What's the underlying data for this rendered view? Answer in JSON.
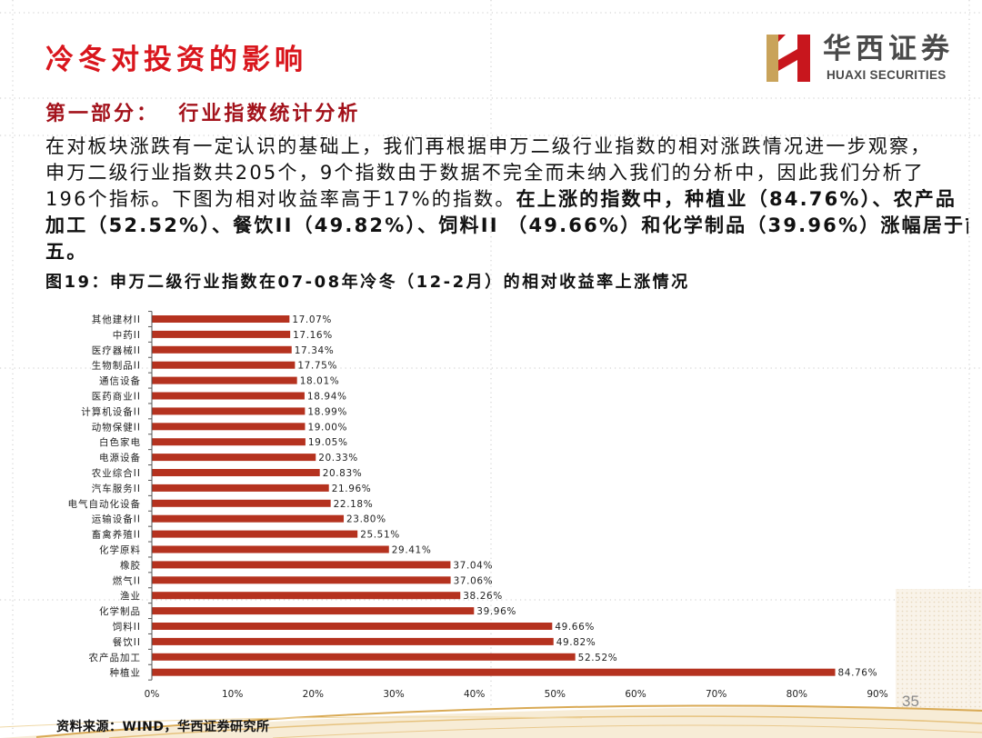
{
  "slide": {
    "title": "冷冬对投资的影响",
    "section_heading": "第一部分：  行业指数统计分析",
    "page_number": "35",
    "source": "资料来源：WIND，华西证券研究所"
  },
  "logo": {
    "name_cn": "华西证券",
    "name_en": "HUAXI SECURITIES",
    "icon": "huaxi-h-logo-icon"
  },
  "body": {
    "line1": "在对板块涨跌有一定认识的基础上，我们再根据申万二级行业指数的相对涨跌情况进一步观察，",
    "line2": "申万二级行业指数共205个，9个指数由于数据不完全而未纳入我们的分析中，因此我们分析了",
    "line3_regular": "196个指标。下图为相对收益率高于17%的指数。",
    "line3_bold": "在上涨的指数中，种植业（84.76%）、农产品",
    "line4_bold": "加工（52.52%）、餐饮II（49.82%）、饲料II （49.66%）和化学制品（39.96%）涨幅居于前",
    "line5_bold": "五。"
  },
  "colors": {
    "title": "#d9161d",
    "section_heading": "#a3121b",
    "body_text": "#111111",
    "logo_text": "#4a4a4a",
    "logo_gold": "#c9a35a",
    "logo_red": "#c8161d"
  },
  "chart_data": {
    "type": "bar",
    "orientation": "horizontal",
    "title": "图19：申万二级行业指数在07-08年冷冬（12-2月）的相对收益率上涨情况",
    "categories": [
      "其他建材II",
      "中药II",
      "医疗器械II",
      "生物制品II",
      "通信设备",
      "医药商业II",
      "计算机设备II",
      "动物保健II",
      "白色家电",
      "电源设备",
      "农业综合II",
      "汽车服务II",
      "电气自动化设备",
      "运输设备II",
      "畜禽养殖II",
      "化学原料",
      "橡胶",
      "燃气II",
      "渔业",
      "化学制品",
      "饲料II",
      "餐饮II",
      "农产品加工",
      "种植业"
    ],
    "values": [
      17.07,
      17.16,
      17.34,
      17.75,
      18.01,
      18.94,
      18.99,
      19.0,
      19.05,
      20.33,
      20.83,
      21.96,
      22.18,
      23.8,
      25.51,
      29.41,
      37.04,
      37.06,
      38.26,
      39.96,
      49.66,
      49.82,
      52.52,
      84.76
    ],
    "value_labels": [
      "17.07%",
      "17.16%",
      "17.34%",
      "17.75%",
      "18.01%",
      "18.94%",
      "18.99%",
      "19.00%",
      "19.05%",
      "20.33%",
      "20.83%",
      "21.96%",
      "22.18%",
      "23.80%",
      "25.51%",
      "29.41%",
      "37.04%",
      "37.06%",
      "38.26%",
      "39.96%",
      "49.66%",
      "49.82%",
      "52.52%",
      "84.76%"
    ],
    "xlim": [
      0,
      90
    ],
    "xticks": [
      0,
      10,
      20,
      30,
      40,
      50,
      60,
      70,
      80,
      90
    ],
    "xtick_labels": [
      "0%",
      "10%",
      "20%",
      "30%",
      "40%",
      "50%",
      "60%",
      "70%",
      "80%",
      "90%"
    ],
    "xlabel": "",
    "ylabel": "",
    "grid": false,
    "legend": "none",
    "bar_color": "#b5321f"
  }
}
